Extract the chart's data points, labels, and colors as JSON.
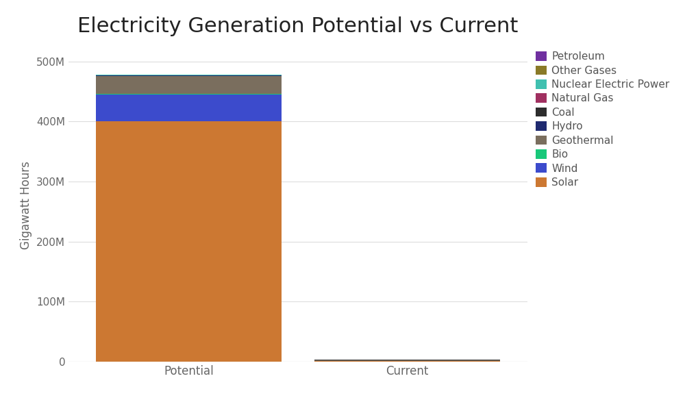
{
  "title": "Electricity Generation Potential vs Current",
  "ylabel": "Gigawatt Hours",
  "categories": [
    "Potential",
    "Current"
  ],
  "series": [
    {
      "name": "Solar",
      "color": "#cc7832",
      "values": [
        400000000,
        1000000
      ]
    },
    {
      "name": "Wind",
      "color": "#3c4bcc",
      "values": [
        45000000,
        500000
      ]
    },
    {
      "name": "Bio",
      "color": "#19c87a",
      "values": [
        500000,
        200000
      ]
    },
    {
      "name": "Geothermal",
      "color": "#7a6e5e",
      "values": [
        30000000,
        100000
      ]
    },
    {
      "name": "Hydro",
      "color": "#1f2a70",
      "values": [
        1000000,
        300000
      ]
    },
    {
      "name": "Coal",
      "color": "#2d2d2d",
      "values": [
        500000,
        800000
      ]
    },
    {
      "name": "Natural Gas",
      "color": "#a03060",
      "values": [
        200000,
        600000
      ]
    },
    {
      "name": "Nuclear Electric Power",
      "color": "#40c0b0",
      "values": [
        200000,
        150000
      ]
    },
    {
      "name": "Other Gases",
      "color": "#8a7a28",
      "values": [
        100000,
        50000
      ]
    },
    {
      "name": "Petroleum",
      "color": "#7030a0",
      "values": [
        100000,
        50000
      ]
    }
  ],
  "ylim": [
    0,
    520000000
  ],
  "yticks": [
    0,
    100000000,
    200000000,
    300000000,
    400000000,
    500000000
  ],
  "ytick_labels": [
    "0",
    "100M",
    "200M",
    "300M",
    "400M",
    "500M"
  ],
  "background_color": "#ffffff",
  "plot_background": "#ffffff",
  "grid_color": "#dddddd",
  "title_fontsize": 22,
  "axis_label_fontsize": 12,
  "tick_fontsize": 11,
  "legend_fontsize": 11
}
